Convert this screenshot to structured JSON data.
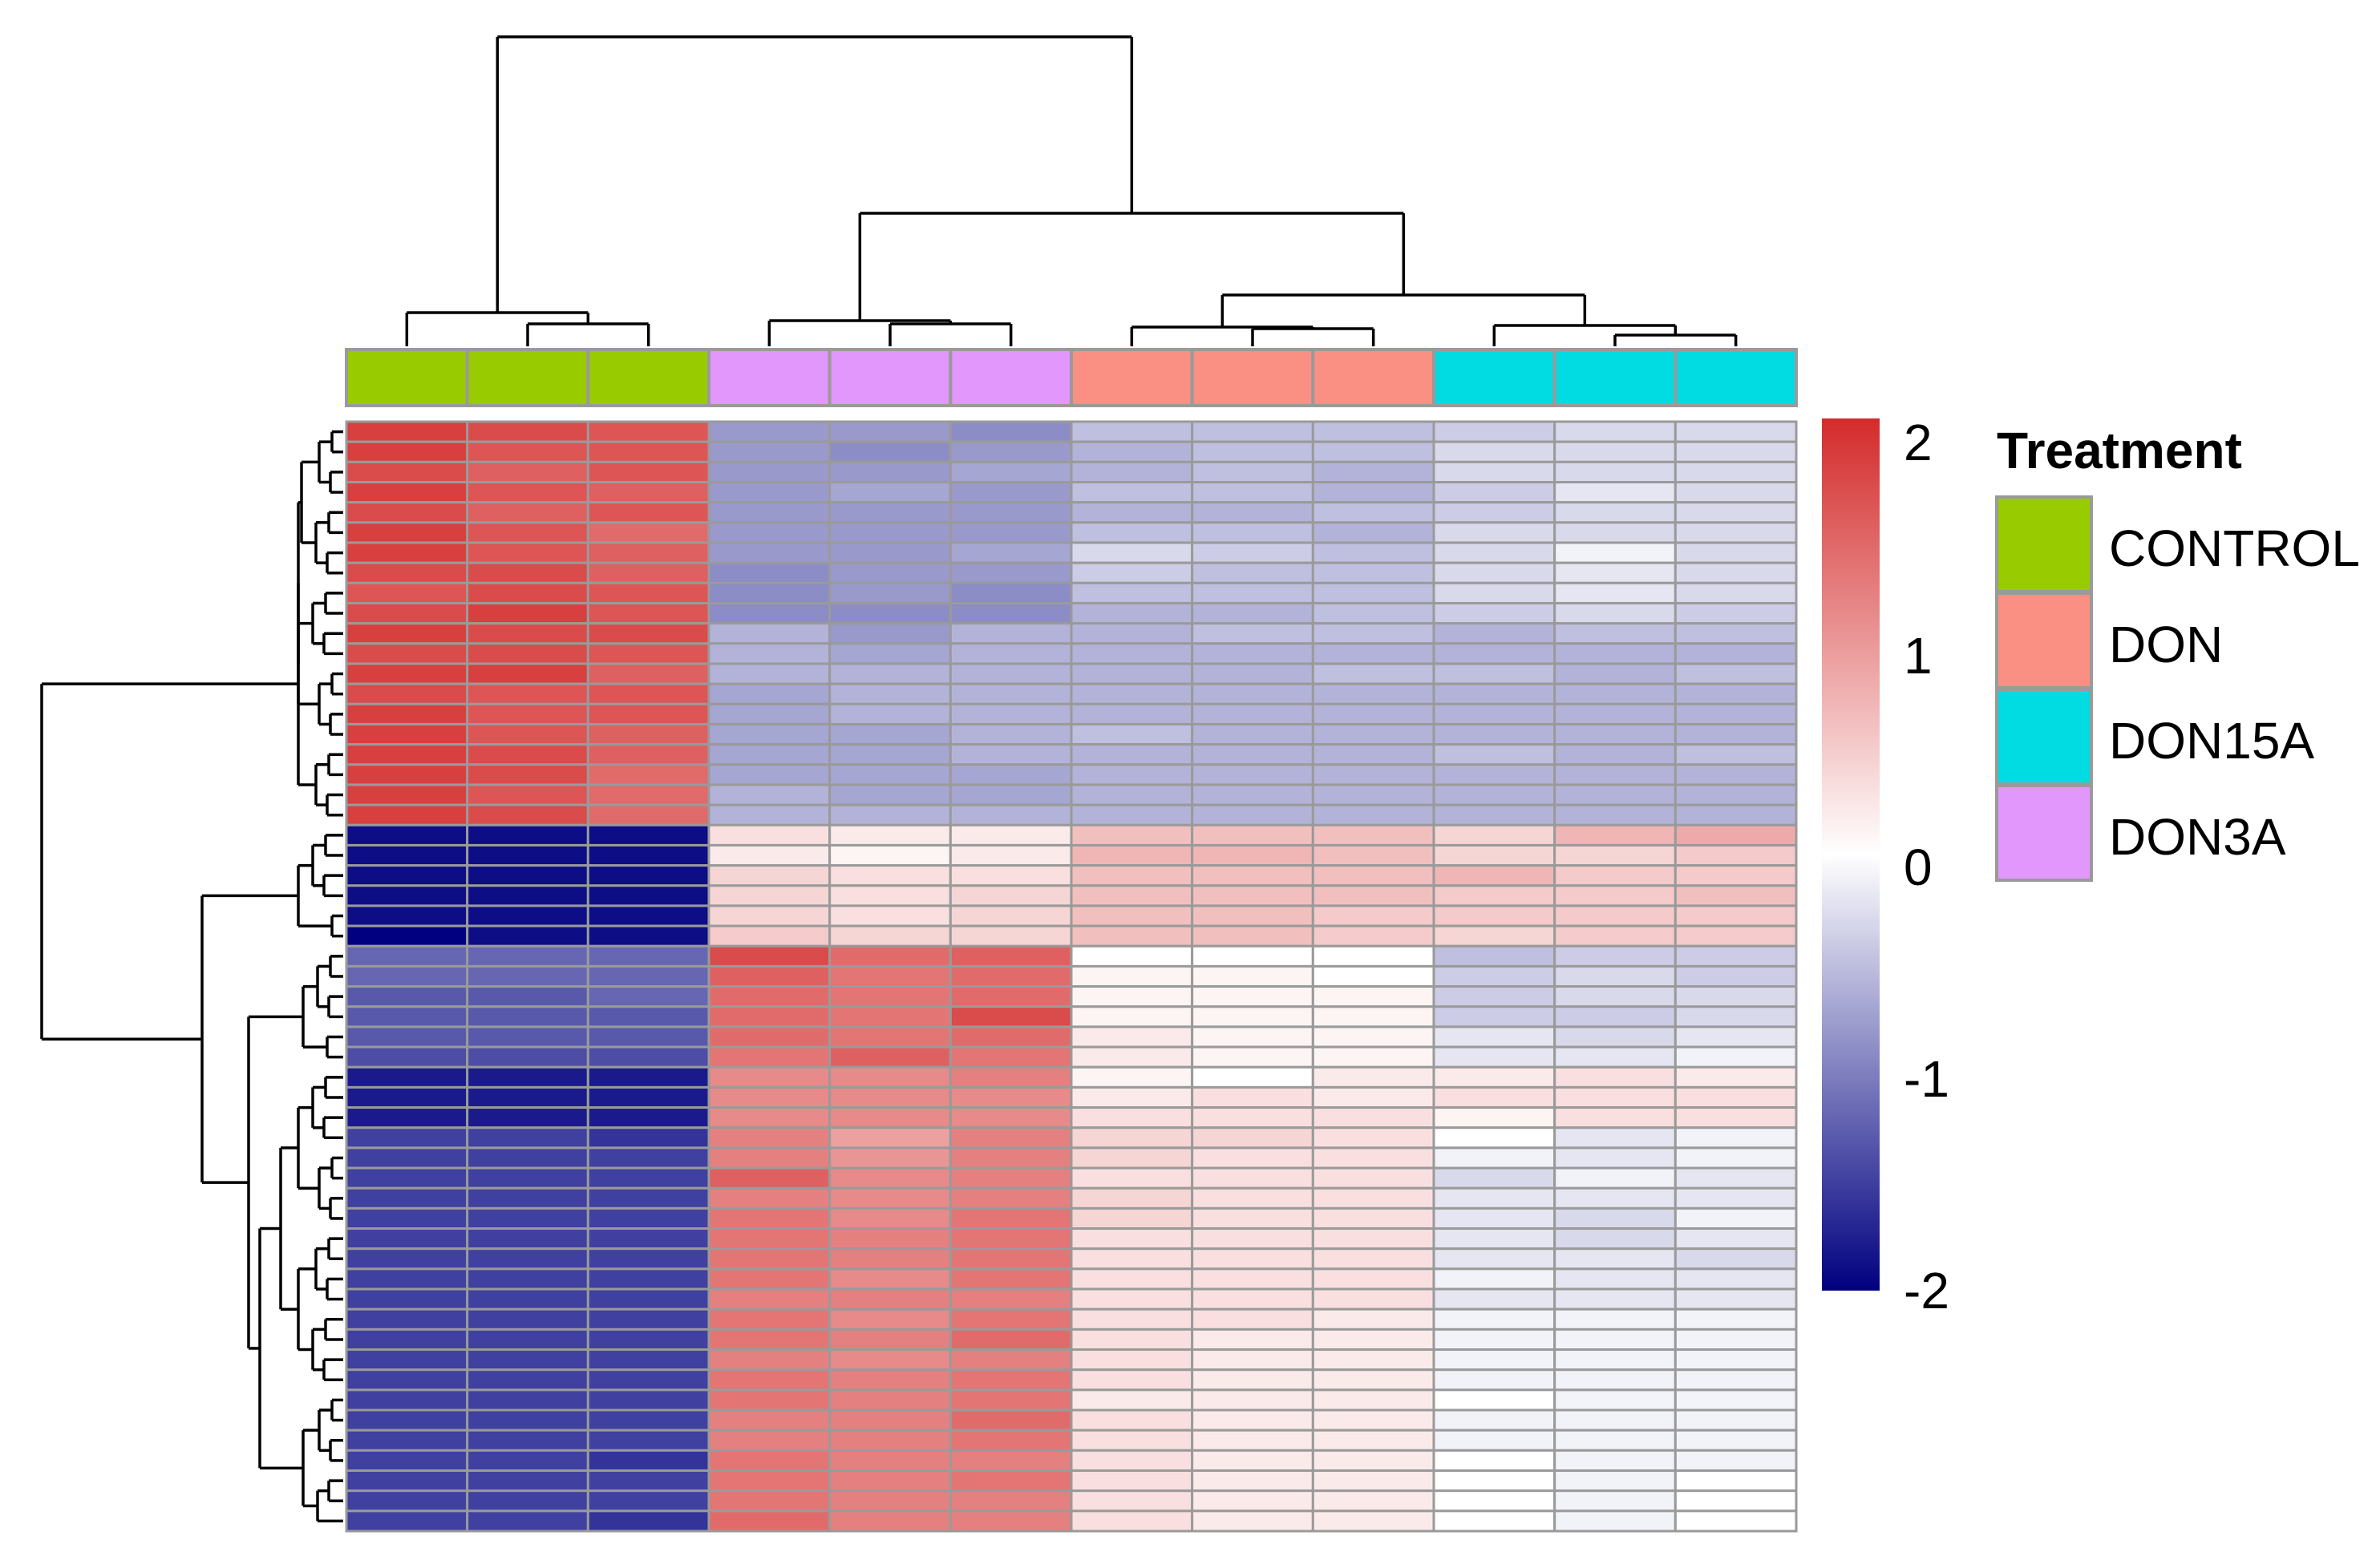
{
  "chart_data": {
    "type": "heatmap",
    "legend_title": "Treatment",
    "legend_items": [
      {
        "label": "CONTROL",
        "color": "#99cc00"
      },
      {
        "label": "DON",
        "color": "#fa8f84"
      },
      {
        "label": "DON15A",
        "color": "#00dce1"
      },
      {
        "label": "DON3A",
        "color": "#e197fb"
      }
    ],
    "columns": [
      {
        "treatment": "CONTROL",
        "color": "#99cc00"
      },
      {
        "treatment": "CONTROL",
        "color": "#99cc00"
      },
      {
        "treatment": "CONTROL",
        "color": "#99cc00"
      },
      {
        "treatment": "DON3A",
        "color": "#e197fb"
      },
      {
        "treatment": "DON3A",
        "color": "#e197fb"
      },
      {
        "treatment": "DON3A",
        "color": "#e197fb"
      },
      {
        "treatment": "DON",
        "color": "#fa8f84"
      },
      {
        "treatment": "DON",
        "color": "#fa8f84"
      },
      {
        "treatment": "DON",
        "color": "#fa8f84"
      },
      {
        "treatment": "DON15A",
        "color": "#00dce1"
      },
      {
        "treatment": "DON15A",
        "color": "#00dce1"
      },
      {
        "treatment": "DON15A",
        "color": "#00dce1"
      }
    ],
    "colorbar": {
      "range": [
        -2,
        2
      ],
      "ticks": [
        "2",
        "1",
        "0",
        "-1",
        "-2"
      ],
      "low": "#000080",
      "mid": "#ffffff",
      "high": "#d42b2b"
    },
    "values": [
      [
        1.8,
        1.7,
        1.6,
        -0.8,
        -0.8,
        -0.9,
        -0.5,
        -0.5,
        -0.5,
        -0.4,
        -0.3,
        -0.3
      ],
      [
        1.8,
        1.6,
        1.6,
        -0.8,
        -0.9,
        -0.8,
        -0.6,
        -0.5,
        -0.5,
        -0.3,
        -0.3,
        -0.3
      ],
      [
        1.7,
        1.5,
        1.6,
        -0.8,
        -0.8,
        -0.7,
        -0.6,
        -0.5,
        -0.6,
        -0.3,
        -0.3,
        -0.3
      ],
      [
        1.8,
        1.6,
        1.5,
        -0.8,
        -0.7,
        -0.8,
        -0.5,
        -0.5,
        -0.6,
        -0.4,
        -0.2,
        -0.3
      ],
      [
        1.7,
        1.5,
        1.6,
        -0.8,
        -0.8,
        -0.8,
        -0.6,
        -0.6,
        -0.5,
        -0.4,
        -0.3,
        -0.3
      ],
      [
        1.8,
        1.6,
        1.4,
        -0.8,
        -0.8,
        -0.8,
        -0.5,
        -0.5,
        -0.6,
        -0.3,
        -0.3,
        -0.3
      ],
      [
        1.8,
        1.6,
        1.5,
        -0.8,
        -0.8,
        -0.7,
        -0.3,
        -0.4,
        -0.5,
        -0.3,
        -0.1,
        -0.3
      ],
      [
        1.7,
        1.7,
        1.5,
        -0.9,
        -0.8,
        -0.8,
        -0.4,
        -0.5,
        -0.5,
        -0.3,
        -0.2,
        -0.3
      ],
      [
        1.6,
        1.7,
        1.6,
        -0.9,
        -0.8,
        -0.9,
        -0.5,
        -0.5,
        -0.5,
        -0.3,
        -0.2,
        -0.3
      ],
      [
        1.7,
        1.8,
        1.6,
        -0.9,
        -0.9,
        -0.9,
        -0.6,
        -0.6,
        -0.5,
        -0.4,
        -0.3,
        -0.4
      ],
      [
        1.8,
        1.7,
        1.7,
        -0.6,
        -0.8,
        -0.6,
        -0.6,
        -0.5,
        -0.5,
        -0.6,
        -0.5,
        -0.5
      ],
      [
        1.7,
        1.7,
        1.6,
        -0.6,
        -0.7,
        -0.6,
        -0.6,
        -0.6,
        -0.6,
        -0.6,
        -0.6,
        -0.6
      ],
      [
        1.8,
        1.8,
        1.5,
        -0.6,
        -0.6,
        -0.6,
        -0.6,
        -0.6,
        -0.5,
        -0.5,
        -0.6,
        -0.5
      ],
      [
        1.7,
        1.6,
        1.6,
        -0.7,
        -0.6,
        -0.6,
        -0.6,
        -0.6,
        -0.6,
        -0.6,
        -0.6,
        -0.6
      ],
      [
        1.8,
        1.6,
        1.6,
        -0.7,
        -0.6,
        -0.6,
        -0.6,
        -0.6,
        -0.6,
        -0.6,
        -0.6,
        -0.6
      ],
      [
        1.8,
        1.6,
        1.5,
        -0.7,
        -0.7,
        -0.6,
        -0.5,
        -0.6,
        -0.6,
        -0.6,
        -0.6,
        -0.6
      ],
      [
        1.8,
        1.7,
        1.5,
        -0.7,
        -0.7,
        -0.6,
        -0.6,
        -0.6,
        -0.6,
        -0.5,
        -0.6,
        -0.5
      ],
      [
        1.8,
        1.7,
        1.4,
        -0.7,
        -0.7,
        -0.7,
        -0.6,
        -0.6,
        -0.6,
        -0.6,
        -0.6,
        -0.6
      ],
      [
        1.8,
        1.6,
        1.4,
        -0.6,
        -0.7,
        -0.7,
        -0.6,
        -0.6,
        -0.6,
        -0.6,
        -0.6,
        -0.6
      ],
      [
        1.8,
        1.7,
        1.4,
        -0.6,
        -0.6,
        -0.6,
        -0.6,
        -0.6,
        -0.6,
        -0.6,
        -0.6,
        -0.6
      ],
      [
        -1.9,
        -1.9,
        -1.9,
        0.3,
        0.2,
        0.2,
        0.6,
        0.6,
        0.6,
        0.4,
        0.7,
        0.8
      ],
      [
        -1.9,
        -1.9,
        -1.9,
        0.2,
        0.1,
        0.2,
        0.7,
        0.7,
        0.6,
        0.4,
        0.4,
        0.5
      ],
      [
        -1.9,
        -1.9,
        -1.9,
        0.4,
        0.3,
        0.3,
        0.6,
        0.6,
        0.6,
        0.7,
        0.5,
        0.5
      ],
      [
        -1.9,
        -1.9,
        -1.9,
        0.4,
        0.3,
        0.4,
        0.6,
        0.6,
        0.6,
        0.5,
        0.5,
        0.6
      ],
      [
        -1.9,
        -1.9,
        -1.9,
        0.4,
        0.3,
        0.4,
        0.6,
        0.6,
        0.5,
        0.5,
        0.5,
        0.5
      ],
      [
        -2.0,
        -1.9,
        -1.9,
        0.5,
        0.4,
        0.4,
        0.6,
        0.6,
        0.5,
        0.4,
        0.5,
        0.5
      ],
      [
        -1.2,
        -1.2,
        -1.2,
        1.7,
        1.4,
        1.5,
        0.0,
        0.0,
        0.0,
        -0.5,
        -0.4,
        -0.4
      ],
      [
        -1.2,
        -1.2,
        -1.2,
        1.5,
        1.3,
        1.4,
        0.1,
        0.1,
        0.0,
        -0.4,
        -0.3,
        -0.4
      ],
      [
        -1.3,
        -1.3,
        -1.2,
        1.4,
        1.3,
        1.4,
        0.1,
        0.1,
        0.1,
        -0.4,
        -0.3,
        -0.3
      ],
      [
        -1.3,
        -1.3,
        -1.3,
        1.4,
        1.3,
        1.7,
        0.1,
        0.1,
        0.1,
        -0.4,
        -0.4,
        -0.3
      ],
      [
        -1.3,
        -1.3,
        -1.3,
        1.4,
        1.3,
        1.4,
        0.2,
        0.1,
        0.1,
        -0.2,
        -0.3,
        -0.2
      ],
      [
        -1.4,
        -1.4,
        -1.4,
        1.3,
        1.5,
        1.3,
        0.2,
        0.1,
        0.1,
        -0.2,
        -0.2,
        -0.1
      ],
      [
        -1.8,
        -1.8,
        -1.8,
        1.1,
        1.1,
        1.2,
        0.1,
        0.0,
        0.2,
        0.2,
        0.3,
        0.2
      ],
      [
        -1.8,
        -1.8,
        -1.8,
        1.1,
        1.1,
        1.1,
        0.2,
        0.3,
        0.2,
        0.3,
        0.3,
        0.3
      ],
      [
        -1.8,
        -1.8,
        -1.8,
        1.1,
        1.1,
        1.1,
        0.3,
        0.3,
        0.3,
        0.1,
        0.3,
        0.3
      ],
      [
        -1.5,
        -1.5,
        -1.6,
        1.2,
        0.9,
        1.2,
        0.4,
        0.4,
        0.3,
        0.0,
        -0.2,
        -0.1
      ],
      [
        -1.5,
        -1.5,
        -1.5,
        1.2,
        1.0,
        1.2,
        0.4,
        0.3,
        0.3,
        -0.1,
        -0.2,
        -0.1
      ],
      [
        -1.5,
        -1.5,
        -1.5,
        1.5,
        1.1,
        1.2,
        0.3,
        0.3,
        0.3,
        -0.3,
        -0.1,
        -0.2
      ],
      [
        -1.5,
        -1.5,
        -1.5,
        1.2,
        1.1,
        1.2,
        0.4,
        0.3,
        0.3,
        -0.2,
        -0.2,
        -0.2
      ],
      [
        -1.5,
        -1.5,
        -1.5,
        1.3,
        1.1,
        1.3,
        0.4,
        0.3,
        0.3,
        -0.2,
        -0.3,
        -0.1
      ],
      [
        -1.5,
        -1.5,
        -1.5,
        1.3,
        1.2,
        1.3,
        0.3,
        0.3,
        0.3,
        -0.2,
        -0.3,
        -0.2
      ],
      [
        -1.5,
        -1.5,
        -1.5,
        1.3,
        1.2,
        1.3,
        0.3,
        0.3,
        0.3,
        -0.2,
        -0.2,
        -0.3
      ],
      [
        -1.5,
        -1.5,
        -1.5,
        1.3,
        1.1,
        1.3,
        0.3,
        0.3,
        0.3,
        -0.1,
        -0.2,
        -0.2
      ],
      [
        -1.5,
        -1.5,
        -1.5,
        1.2,
        1.2,
        1.2,
        0.3,
        0.3,
        0.3,
        -0.2,
        -0.2,
        -0.2
      ],
      [
        -1.5,
        -1.5,
        -1.5,
        1.3,
        1.1,
        1.3,
        0.3,
        0.3,
        0.2,
        -0.1,
        -0.1,
        -0.1
      ],
      [
        -1.5,
        -1.5,
        -1.5,
        1.3,
        1.2,
        1.4,
        0.3,
        0.2,
        0.2,
        -0.1,
        -0.1,
        -0.1
      ],
      [
        -1.5,
        -1.5,
        -1.5,
        1.2,
        1.1,
        1.2,
        0.3,
        0.2,
        0.2,
        -0.1,
        -0.1,
        -0.1
      ],
      [
        -1.5,
        -1.5,
        -1.5,
        1.3,
        1.2,
        1.3,
        0.3,
        0.2,
        0.2,
        -0.1,
        -0.1,
        -0.1
      ],
      [
        -1.5,
        -1.5,
        -1.5,
        1.3,
        1.2,
        1.3,
        0.2,
        0.2,
        0.2,
        0.0,
        -0.1,
        -0.1
      ],
      [
        -1.5,
        -1.5,
        -1.5,
        1.2,
        1.2,
        1.4,
        0.3,
        0.2,
        0.2,
        -0.1,
        -0.1,
        -0.1
      ],
      [
        -1.5,
        -1.5,
        -1.5,
        1.2,
        1.2,
        1.3,
        0.3,
        0.2,
        0.2,
        -0.1,
        -0.1,
        -0.1
      ],
      [
        -1.5,
        -1.5,
        -1.6,
        1.3,
        1.2,
        1.2,
        0.3,
        0.2,
        0.2,
        0.0,
        -0.1,
        -0.1
      ],
      [
        -1.5,
        -1.5,
        -1.5,
        1.3,
        1.2,
        1.3,
        0.3,
        0.2,
        0.2,
        0.0,
        -0.1,
        0.0
      ],
      [
        -1.5,
        -1.5,
        -1.5,
        1.3,
        1.2,
        1.2,
        0.3,
        0.2,
        0.2,
        0.0,
        -0.1,
        0.0
      ],
      [
        -1.5,
        -1.5,
        -1.6,
        1.4,
        1.2,
        1.2,
        0.3,
        0.2,
        0.2,
        0.0,
        -0.1,
        0.0
      ]
    ]
  }
}
